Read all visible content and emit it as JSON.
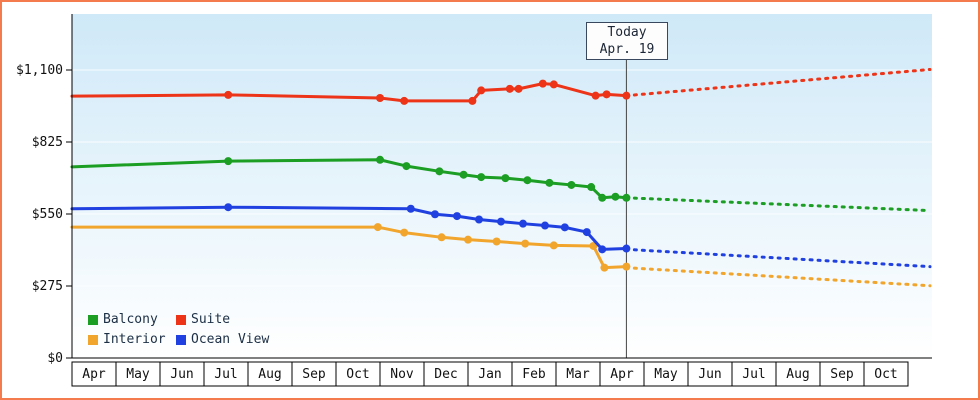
{
  "today": {
    "label": "Today",
    "date": "Apr. 19"
  },
  "legend": {
    "items": [
      {
        "label": "Balcony",
        "color": "#1b9e23"
      },
      {
        "label": "Suite",
        "color": "#ed3419"
      },
      {
        "label": "Interior",
        "color": "#f2a52d"
      },
      {
        "label": "Ocean View",
        "color": "#2041e0"
      }
    ]
  },
  "colors": {
    "frame_border": "#f47b4d",
    "plot_gradient_top": "#cfe9f8",
    "plot_gradient_bottom": "#ffffff",
    "axis": "#000000",
    "gridline": "#ffffff",
    "today_line": "#444444",
    "month_cell_fill": "#ffffff",
    "month_cell_border": "#000000",
    "label_text": "#111111"
  },
  "chart_data": {
    "type": "line",
    "x_unit": "months-from-first-Apr",
    "x_labels": [
      "Apr",
      "May",
      "Jun",
      "Jul",
      "Aug",
      "Sep",
      "Oct",
      "Nov",
      "Dec",
      "Jan",
      "Feb",
      "Mar",
      "Apr",
      "May",
      "Jun",
      "Jul",
      "Aug",
      "Sep",
      "Oct"
    ],
    "y_ticks": [
      {
        "value": 0,
        "label": "$0"
      },
      {
        "value": 275,
        "label": "$275"
      },
      {
        "value": 550,
        "label": "$550"
      },
      {
        "value": 825,
        "label": "$825"
      },
      {
        "value": 1100,
        "label": "$1,100"
      }
    ],
    "ylim": [
      0,
      1100
    ],
    "grid": true,
    "today_x": 12.6,
    "legend_position": "bottom-left",
    "series": [
      {
        "name": "Balcony",
        "color": "#1b9e23",
        "solid": [
          [
            0,
            730
          ],
          [
            3.55,
            752
          ],
          [
            7.0,
            757
          ],
          [
            7.6,
            733
          ],
          [
            8.35,
            713
          ],
          [
            8.9,
            700
          ],
          [
            9.3,
            691
          ],
          [
            9.85,
            687
          ],
          [
            10.35,
            679
          ],
          [
            10.85,
            669
          ],
          [
            11.35,
            661
          ],
          [
            11.8,
            653
          ],
          [
            12.05,
            612
          ],
          [
            12.35,
            616
          ],
          [
            12.6,
            612
          ]
        ],
        "dotted": [
          [
            12.6,
            612
          ],
          [
            19.5,
            563
          ]
        ]
      },
      {
        "name": "Suite",
        "color": "#ed3419",
        "solid": [
          [
            0,
            1000
          ],
          [
            3.55,
            1005
          ],
          [
            7.0,
            993
          ],
          [
            7.55,
            982
          ],
          [
            9.1,
            982
          ],
          [
            9.3,
            1022
          ],
          [
            9.95,
            1028
          ],
          [
            10.15,
            1028
          ],
          [
            10.7,
            1048
          ],
          [
            10.95,
            1045
          ],
          [
            11.9,
            1002
          ],
          [
            12.15,
            1007
          ],
          [
            12.6,
            1002
          ]
        ],
        "dotted": [
          [
            12.6,
            1002
          ],
          [
            19.5,
            1102
          ]
        ]
      },
      {
        "name": "Interior",
        "color": "#f2a52d",
        "solid": [
          [
            0,
            500
          ],
          [
            6.95,
            500
          ],
          [
            7.55,
            479
          ],
          [
            8.4,
            461
          ],
          [
            9.0,
            452
          ],
          [
            9.65,
            445
          ],
          [
            10.3,
            437
          ],
          [
            10.95,
            430
          ],
          [
            11.85,
            428
          ],
          [
            12.1,
            345
          ],
          [
            12.6,
            349
          ]
        ],
        "dotted": [
          [
            12.6,
            345
          ],
          [
            19.5,
            276
          ]
        ]
      },
      {
        "name": "Ocean View",
        "color": "#2041e0",
        "solid": [
          [
            0,
            570
          ],
          [
            3.55,
            576
          ],
          [
            7.7,
            570
          ],
          [
            8.25,
            549
          ],
          [
            8.75,
            542
          ],
          [
            9.25,
            529
          ],
          [
            9.75,
            521
          ],
          [
            10.25,
            513
          ],
          [
            10.75,
            506
          ],
          [
            11.2,
            499
          ],
          [
            11.7,
            481
          ],
          [
            12.05,
            415
          ],
          [
            12.6,
            418
          ]
        ],
        "dotted": [
          [
            12.6,
            415
          ],
          [
            19.5,
            349
          ]
        ]
      }
    ]
  }
}
